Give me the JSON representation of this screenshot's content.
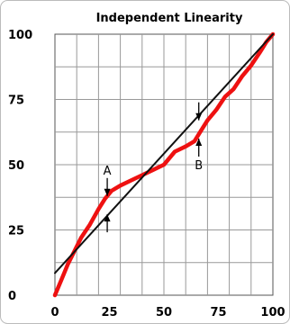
{
  "chart_data": {
    "type": "line",
    "title": "Independent Linearity",
    "xlim": [
      0,
      100
    ],
    "ylim": [
      0,
      100
    ],
    "x_ticks": [
      "0",
      "25",
      "50",
      "75",
      "100"
    ],
    "y_ticks": [
      "0",
      "25",
      "50",
      "75",
      "100"
    ],
    "grid": true,
    "series": [
      {
        "role": "measured",
        "color": "#ee1111",
        "points": [
          [
            0,
            0
          ],
          [
            3,
            6
          ],
          [
            6,
            12
          ],
          [
            9,
            17
          ],
          [
            12,
            22
          ],
          [
            16,
            27
          ],
          [
            20,
            33
          ],
          [
            23,
            37
          ],
          [
            26,
            40
          ],
          [
            30,
            42
          ],
          [
            35,
            44
          ],
          [
            40,
            46
          ],
          [
            45,
            48
          ],
          [
            50,
            50
          ],
          [
            55,
            55
          ],
          [
            60,
            57
          ],
          [
            64,
            59
          ],
          [
            67,
            63
          ],
          [
            70,
            67
          ],
          [
            74,
            71
          ],
          [
            78,
            76
          ],
          [
            82,
            79
          ],
          [
            86,
            84
          ],
          [
            90,
            88
          ],
          [
            94,
            93
          ],
          [
            97,
            97
          ],
          [
            100,
            100
          ]
        ]
      },
      {
        "role": "best-fit straight line",
        "color": "#111111",
        "points": [
          [
            0,
            8.5
          ],
          [
            100,
            100
          ]
        ]
      }
    ],
    "annotations": [
      {
        "label": "A",
        "x": 24,
        "y_from": 38,
        "y_to": 31
      },
      {
        "label": "B",
        "x": 66,
        "y_from": 67,
        "y_to": 60
      }
    ]
  }
}
